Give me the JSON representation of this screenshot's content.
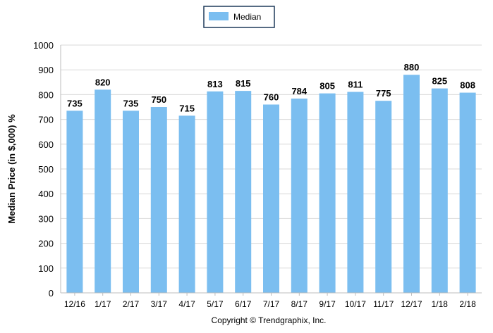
{
  "chart_data": {
    "type": "bar",
    "categories": [
      "12/16",
      "1/17",
      "2/17",
      "3/17",
      "4/17",
      "5/17",
      "6/17",
      "7/17",
      "8/17",
      "9/17",
      "10/17",
      "11/17",
      "12/17",
      "1/18",
      "2/18"
    ],
    "series": [
      {
        "name": "Median",
        "values": [
          735,
          820,
          735,
          750,
          715,
          813,
          815,
          760,
          784,
          805,
          811,
          775,
          880,
          825,
          808
        ]
      }
    ],
    "ylabel": "Median Price (in $,000) %",
    "xlabel": "",
    "ylim": [
      0,
      1000
    ],
    "yticks": [
      0,
      100,
      200,
      300,
      400,
      500,
      600,
      700,
      800,
      900,
      1000
    ],
    "grid": true,
    "legend_position": "top-center",
    "bar_color": "#7BBEF0",
    "grid_color": "#d8d8d8"
  },
  "footer": {
    "copyright": "Copyright © Trendgraphix, Inc."
  }
}
